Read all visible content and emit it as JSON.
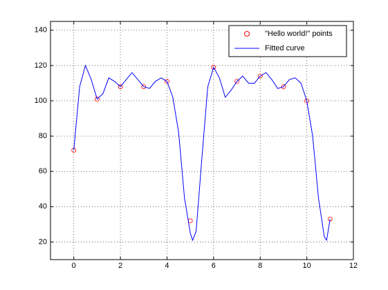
{
  "chart_data": {
    "type": "line",
    "xlim": [
      -1,
      12
    ],
    "xticks": [
      0,
      2,
      4,
      6,
      8,
      10,
      12
    ],
    "ylim": [
      10,
      145
    ],
    "yticks": [
      20,
      40,
      60,
      80,
      100,
      120,
      140
    ],
    "grid": true,
    "legend": "upper-right",
    "series": [
      {
        "name": "\"Hello world!\" points",
        "color": "#ff0000",
        "marker": "circle",
        "x": [
          0,
          1,
          2,
          3,
          4,
          5,
          6,
          7,
          8,
          9,
          10,
          11
        ],
        "values": [
          72,
          101,
          108,
          108,
          111,
          32,
          119,
          111,
          114,
          108,
          100,
          33
        ]
      },
      {
        "name": "Fitted curve",
        "color": "#0000ff",
        "marker": "none",
        "x": [
          0,
          0.25,
          0.5,
          0.75,
          1,
          1.25,
          1.5,
          1.75,
          2,
          2.25,
          2.5,
          2.75,
          3,
          3.25,
          3.5,
          3.75,
          4,
          4.25,
          4.5,
          4.75,
          5,
          5.1,
          5.25,
          5.5,
          5.75,
          6,
          6.25,
          6.5,
          6.75,
          7,
          7.25,
          7.5,
          7.75,
          8,
          8.25,
          8.5,
          8.75,
          9,
          9.25,
          9.5,
          9.75,
          10,
          10.25,
          10.5,
          10.75,
          10.85,
          11
        ],
        "values": [
          72,
          108,
          120,
          112,
          101,
          104,
          113,
          111,
          108,
          112,
          116,
          112,
          108,
          107,
          111,
          113,
          111,
          102,
          82,
          45,
          25,
          21,
          26,
          68,
          108,
          119,
          113,
          102,
          106,
          111,
          114,
          110,
          110,
          114,
          116,
          112,
          107,
          108,
          112,
          113,
          110,
          100,
          80,
          45,
          23,
          21,
          33
        ]
      }
    ]
  }
}
